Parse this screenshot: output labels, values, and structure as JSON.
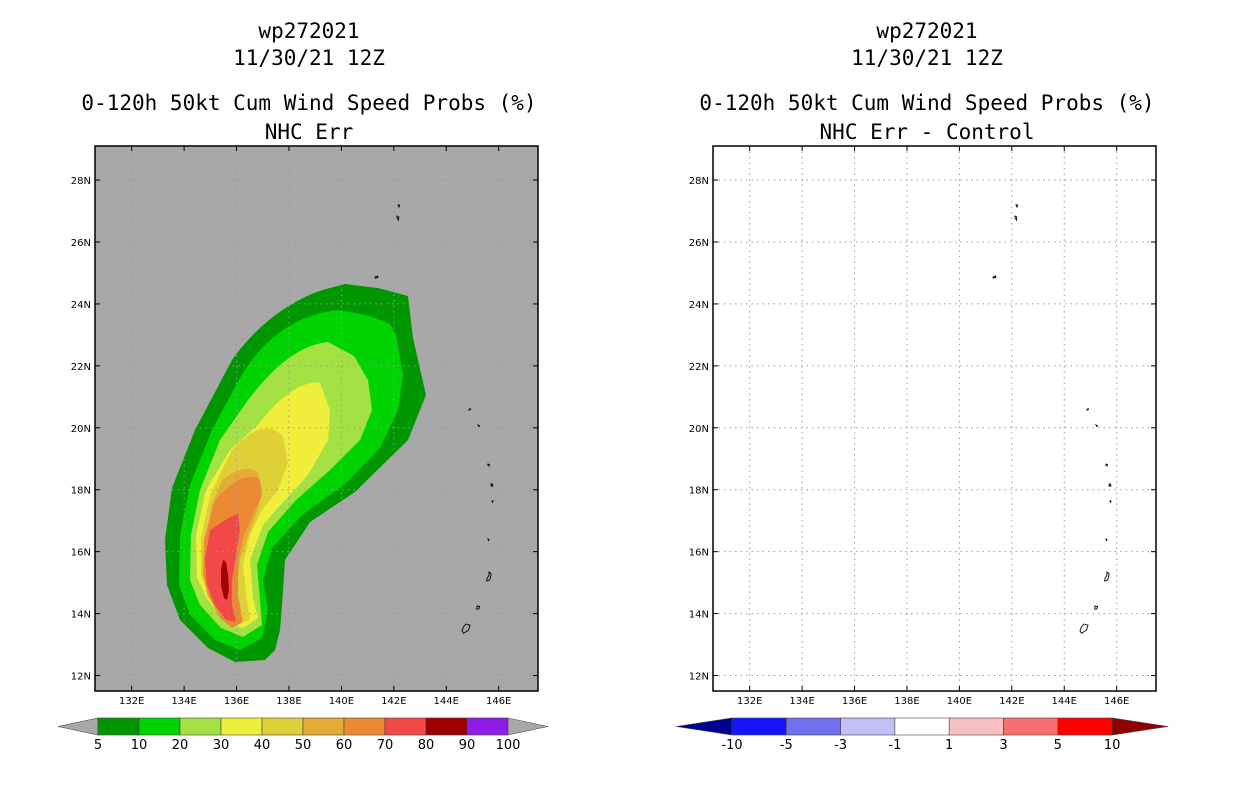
{
  "panels": [
    {
      "storm_id": "wp272021",
      "datetime": "11/30/21 12Z",
      "title": "0-120h 50kt Cum Wind Speed Probs (%)",
      "subtitle": "NHC Err",
      "background_color": "#a8a8a8"
    },
    {
      "storm_id": "wp272021",
      "datetime": "11/30/21 12Z",
      "title": "0-120h 50kt Cum Wind Speed Probs (%)",
      "subtitle": "NHC Err - Control",
      "background_color": "#ffffff"
    }
  ],
  "chart_data": [
    {
      "type": "heatmap",
      "title": "0-120h 50kt Cum Wind Speed Probs (%)",
      "subtitle": "NHC Err",
      "x_ticks": [
        "132E",
        "134E",
        "136E",
        "138E",
        "140E",
        "142E",
        "144E",
        "146E"
      ],
      "y_ticks": [
        "12N",
        "14N",
        "16N",
        "18N",
        "20N",
        "22N",
        "24N",
        "26N",
        "28N"
      ],
      "xlim": [
        130.6,
        147.5
      ],
      "ylim": [
        11.5,
        29.1
      ],
      "grid": true,
      "contour_levels": [
        {
          "level": 5,
          "color": "#009600"
        },
        {
          "level": 10,
          "color": "#00d400"
        },
        {
          "level": 20,
          "color": "#a4e244"
        },
        {
          "level": 30,
          "color": "#f0f03c"
        },
        {
          "level": 40,
          "color": "#e0d038"
        },
        {
          "level": 50,
          "color": "#e4ac34"
        },
        {
          "level": 60,
          "color": "#ec8a34"
        },
        {
          "level": 70,
          "color": "#f24848"
        },
        {
          "level": 80,
          "color": "#a00000"
        }
      ],
      "colorbar": {
        "labels": [
          "5",
          "10",
          "20",
          "30",
          "40",
          "50",
          "60",
          "70",
          "80",
          "90",
          "100"
        ],
        "colors": [
          "#009600",
          "#00d400",
          "#a4e244",
          "#f0f03c",
          "#e0d038",
          "#e4ac34",
          "#ec8a34",
          "#f24848",
          "#a00000",
          "#8c1ce6"
        ],
        "end_color": "#a8a8a8"
      }
    },
    {
      "type": "heatmap",
      "title": "0-120h 50kt Cum Wind Speed Probs (%)",
      "subtitle": "NHC Err - Control",
      "x_ticks": [
        "132E",
        "134E",
        "136E",
        "138E",
        "140E",
        "142E",
        "144E",
        "146E"
      ],
      "y_ticks": [
        "12N",
        "14N",
        "16N",
        "18N",
        "20N",
        "22N",
        "24N",
        "26N",
        "28N"
      ],
      "xlim": [
        130.6,
        147.5
      ],
      "ylim": [
        11.5,
        29.1
      ],
      "grid": true,
      "colorbar": {
        "labels": [
          "-10",
          "-5",
          "-3",
          "-1",
          "1",
          "3",
          "5",
          "10"
        ],
        "colors": [
          "#1414ff",
          "#7070f0",
          "#c0c0f4",
          "#ffffff",
          "#f8c0c0",
          "#f67070",
          "#ff0000"
        ],
        "end_low_color": "#000090",
        "end_high_color": "#900000"
      }
    }
  ]
}
